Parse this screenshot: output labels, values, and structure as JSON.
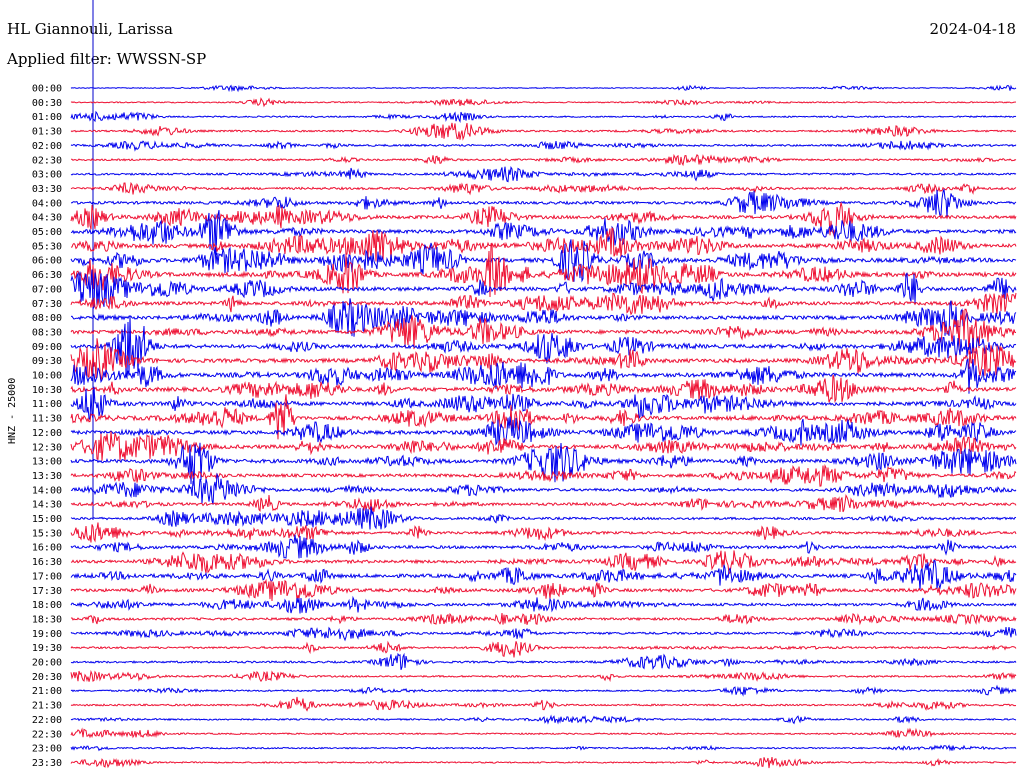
{
  "header": {
    "station": "HL Giannouli, Larissa",
    "date": "2024-04-18",
    "filter": "Applied filter: WWSSN-SP"
  },
  "colors": {
    "trace_a": "#0000ee",
    "trace_b": "#ee1133",
    "marker": "#0000cc"
  },
  "chart_data": {
    "type": "line",
    "title": "HL Giannouli, Larissa",
    "ylabel": "HNZ - 25000",
    "rows": [
      "00:00",
      "00:30",
      "01:00",
      "01:30",
      "02:00",
      "02:30",
      "03:00",
      "03:30",
      "04:00",
      "04:30",
      "05:00",
      "05:30",
      "06:00",
      "06:30",
      "07:00",
      "07:30",
      "08:00",
      "08:30",
      "09:00",
      "09:30",
      "10:00",
      "10:30",
      "11:00",
      "11:30",
      "12:00",
      "12:30",
      "13:00",
      "13:30",
      "14:00",
      "14:30",
      "15:00",
      "15:30",
      "16:00",
      "16:30",
      "17:00",
      "17:30",
      "18:00",
      "18:30",
      "19:00",
      "19:30",
      "20:00",
      "20:30",
      "21:00",
      "21:30",
      "22:00",
      "22:30",
      "23:00",
      "23:30"
    ],
    "activity": [
      0.05,
      0.15,
      0.2,
      0.3,
      0.35,
      0.3,
      0.35,
      0.45,
      0.6,
      0.75,
      0.85,
      0.9,
      0.95,
      1.0,
      0.9,
      0.8,
      0.85,
      0.85,
      0.9,
      0.95,
      1.0,
      0.95,
      0.9,
      0.85,
      0.9,
      0.9,
      0.85,
      0.7,
      0.6,
      0.6,
      0.5,
      0.55,
      0.65,
      0.7,
      0.85,
      0.7,
      0.6,
      0.5,
      0.45,
      0.35,
      0.35,
      0.3,
      0.25,
      0.3,
      0.25,
      0.2,
      0.2,
      0.2
    ],
    "colors_alternate": [
      "trace_a",
      "trace_b"
    ]
  }
}
